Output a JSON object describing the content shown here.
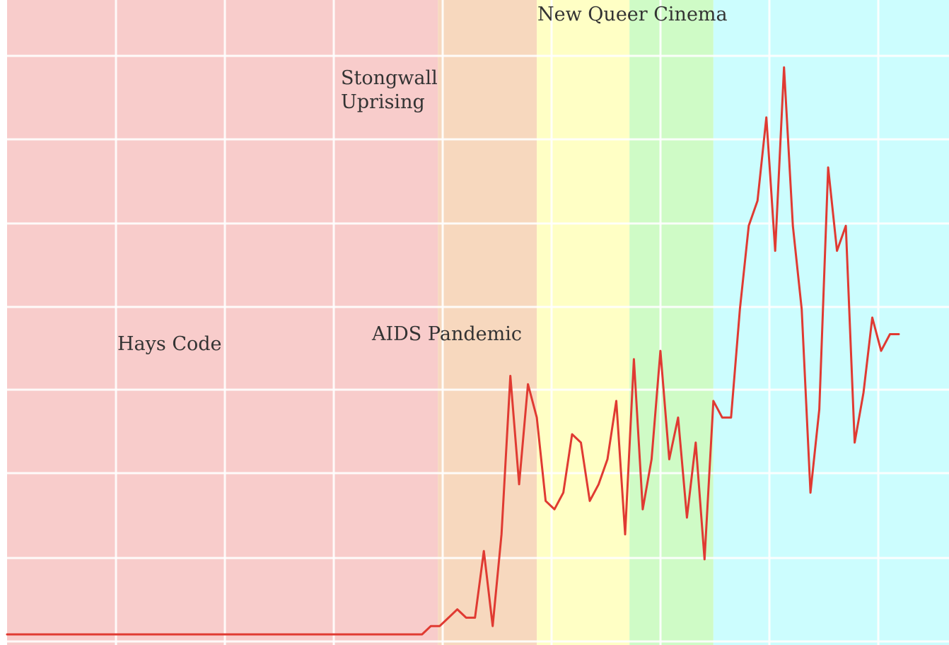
{
  "chart_data": {
    "type": "line",
    "title": "",
    "xlabel": "",
    "ylabel": "",
    "x_range": [
      1920,
      2021
    ],
    "y_range": [
      0,
      7.5
    ],
    "grid": true,
    "line_color": "#E03A32",
    "eras": [
      {
        "label_lines": [
          "Hays Code"
        ],
        "start": 1920,
        "end": 1968.8,
        "color": "#F8CCCB"
      },
      {
        "label_lines": [
          "Stongwall",
          "Uprising"
        ],
        "start": 1968.8,
        "end": 1980,
        "color": "#F7D8BE"
      },
      {
        "label_lines": [
          "AIDS Pandemic"
        ],
        "start": 1980,
        "end": 1990.5,
        "color": "#FFFFC5"
      },
      {
        "label_lines": [
          "New Queer Cinema"
        ],
        "start": 1990.5,
        "end": 2000,
        "color": "#CFFBC6"
      },
      {
        "label_lines": [
          ""
        ],
        "start": 2000,
        "end": 2021,
        "color": "#CCFDFE"
      }
    ],
    "series": [
      {
        "x": [
          1920,
          1921,
          1922,
          1923,
          1924,
          1925,
          1926,
          1927,
          1928,
          1929,
          1930,
          1931,
          1932,
          1933,
          1934,
          1935,
          1936,
          1937,
          1938,
          1939,
          1940,
          1941,
          1942,
          1943,
          1944,
          1945,
          1946,
          1947,
          1948,
          1949,
          1950,
          1951,
          1952,
          1953,
          1954,
          1955,
          1956,
          1957,
          1958,
          1959,
          1960,
          1961,
          1962,
          1963,
          1964,
          1965,
          1966,
          1967,
          1968,
          1969,
          1970,
          1971,
          1972,
          1973,
          1974,
          1975,
          1976,
          1977,
          1978,
          1979,
          1980,
          1981,
          1982,
          1983,
          1984,
          1985,
          1986,
          1987,
          1988,
          1989,
          1990,
          1991,
          1992,
          1993,
          1994,
          1995,
          1996,
          1997,
          1998,
          1999,
          2000,
          2001,
          2002,
          2003,
          2004,
          2005,
          2006,
          2007,
          2008,
          2009,
          2010,
          2011,
          2012,
          2013,
          2014,
          2015,
          2016,
          2017,
          2018,
          2019,
          2020,
          2021
        ],
        "values": [
          0,
          0,
          0,
          0,
          0,
          0,
          0,
          0,
          0,
          0,
          0,
          0,
          0,
          0,
          0,
          0,
          0,
          0,
          0,
          0,
          0,
          0,
          0,
          0,
          0,
          0,
          0,
          0,
          0,
          0,
          0,
          0,
          0,
          0,
          0,
          0,
          0,
          0,
          0,
          0,
          0,
          0,
          0,
          0,
          0,
          0,
          0,
          0,
          0.1,
          0.1,
          0.2,
          0.3,
          0.2,
          0.2,
          1.0,
          0.1,
          1.2,
          3.1,
          1.8,
          3.0,
          2.6,
          1.6,
          1.5,
          1.7,
          2.4,
          2.3,
          1.6,
          1.8,
          2.1,
          2.8,
          1.2,
          3.3,
          1.5,
          2.1,
          3.4,
          2.1,
          2.6,
          1.4,
          2.3,
          0.9,
          2.8,
          2.6,
          2.6,
          3.9,
          4.9,
          5.2,
          6.2,
          4.6,
          6.8,
          4.9,
          3.9,
          1.7,
          2.7,
          5.6,
          4.6,
          4.9,
          2.3,
          2.9,
          3.8,
          3.4,
          3.6,
          3.6
        ]
      }
    ]
  }
}
